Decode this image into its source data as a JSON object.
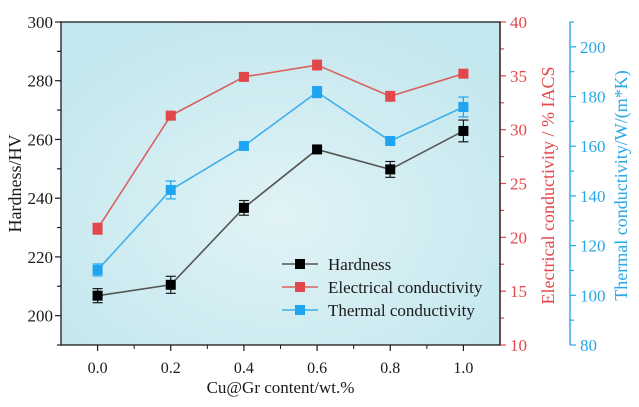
{
  "chart_data": {
    "type": "line",
    "title": "",
    "xlabel": "Cu@Gr content/wt.%",
    "x": [
      0.0,
      0.2,
      0.4,
      0.6,
      0.8,
      1.0
    ],
    "x_tick_labels": [
      "0.0",
      "0.2",
      "0.4",
      "0.6",
      "0.8",
      "1.0"
    ],
    "xlim": [
      -0.1,
      1.1
    ],
    "grid": false,
    "legend_position": "bottom-right",
    "axes": [
      {
        "id": "hardness",
        "side": "left",
        "label": "Hardness/HV",
        "ylim": [
          190,
          300
        ],
        "ticks": [
          200,
          220,
          240,
          260,
          280,
          300
        ],
        "minor_step": 10,
        "color": "#1a1a1a"
      },
      {
        "id": "electrical",
        "side": "right",
        "label": "Electrical conductivity / % IACS",
        "ylim": [
          10,
          40
        ],
        "ticks": [
          10,
          15,
          20,
          25,
          30,
          35,
          40
        ],
        "minor_step": 2.5,
        "color": "#e2474b"
      },
      {
        "id": "thermal",
        "side": "right-offset",
        "label": "Thermal conductivity/W/(m*K)",
        "ylim": [
          80,
          210
        ],
        "ticks": [
          80,
          100,
          120,
          140,
          160,
          180,
          200
        ],
        "minor_step": 10,
        "color": "#2aa7e6"
      }
    ],
    "series": [
      {
        "name": "Hardness",
        "axis": "hardness",
        "color": "#000000",
        "line_color": "#555555",
        "values": [
          206.8,
          210.5,
          236.7,
          256.6,
          249.8,
          262.9
        ],
        "errors": [
          2.4,
          2.9,
          2.5,
          1.0,
          2.7,
          3.7
        ]
      },
      {
        "name": "Electrical conductivity",
        "axis": "electrical",
        "color": "#e2474b",
        "line_color": "#d9625f",
        "values": [
          20.8,
          31.3,
          34.9,
          36.0,
          33.1,
          35.2
        ],
        "errors": [
          0.5,
          0.3,
          0.3,
          0.45,
          0.45,
          0.3
        ]
      },
      {
        "name": "Thermal conductivity",
        "axis": "thermal",
        "color": "#1ea4f0",
        "line_color": "#3cb0ea",
        "values": [
          110.2,
          142.4,
          160.1,
          181.8,
          162.1,
          175.8
        ],
        "errors": [
          2.4,
          3.6,
          1.0,
          2.2,
          1.0,
          4.0
        ]
      }
    ]
  }
}
